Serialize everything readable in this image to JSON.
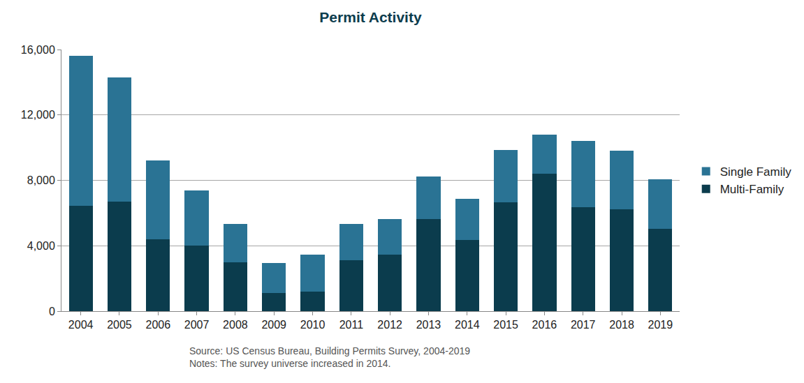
{
  "chart_data": {
    "type": "bar",
    "title": "Permit Activity",
    "categories": [
      "2004",
      "2005",
      "2006",
      "2007",
      "2008",
      "2009",
      "2010",
      "2011",
      "2012",
      "2013",
      "2014",
      "2015",
      "2016",
      "2017",
      "2018",
      "2019"
    ],
    "series": [
      {
        "name": "Multi-Family",
        "color": "#0b3c4d",
        "values": [
          6450,
          6700,
          4400,
          4000,
          3000,
          1100,
          1200,
          3100,
          3450,
          5650,
          4350,
          6650,
          8400,
          6350,
          6250,
          5050
        ]
      },
      {
        "name": "Single Family",
        "color": "#2a7394",
        "values": [
          9150,
          7600,
          4800,
          3400,
          2350,
          1850,
          2250,
          2250,
          2200,
          2600,
          2500,
          3200,
          2400,
          4050,
          3550,
          3000
        ]
      }
    ],
    "stacked": true,
    "ylim": [
      0,
      16000
    ],
    "yticks": [
      0,
      {
        "value": 4000,
        "label": "4,000"
      },
      {
        "value": 8000,
        "label": "8,000"
      },
      {
        "value": 12000,
        "label": "12,000"
      },
      {
        "value": 16000,
        "label": "16,000"
      }
    ],
    "grid": true,
    "legend": "right",
    "annotations": [
      "Source: US Census Bureau, Building Permits Survey, 2004-2019",
      "Notes: The survey universe increased in 2014."
    ]
  }
}
